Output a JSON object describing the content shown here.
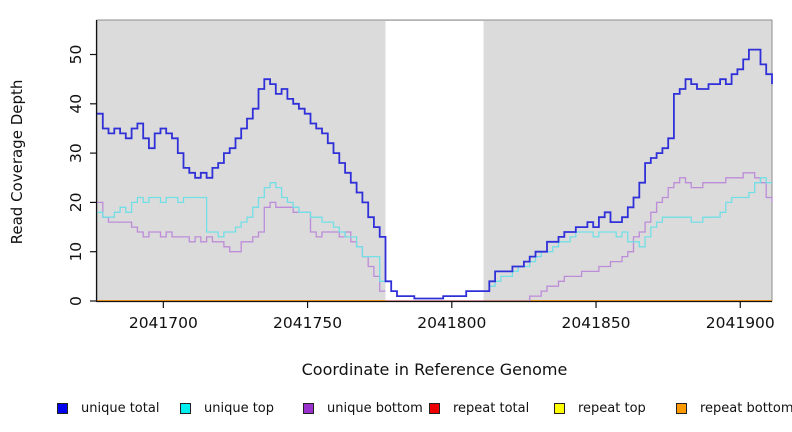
{
  "figure": {
    "x_axis_title": "Coordinate in Reference Genome",
    "y_axis_title": "Read Coverage Depth"
  },
  "chart_data": {
    "type": "line",
    "step_shape": "step-after",
    "title": "",
    "xlabel": "Coordinate in Reference Genome",
    "ylabel": "Read Coverage Depth",
    "xlim": [
      2041677,
      2041911
    ],
    "ylim": [
      0,
      57
    ],
    "x_ticks": [
      2041700,
      2041750,
      2041800,
      2041850,
      2041900
    ],
    "y_ticks": [
      0,
      10,
      20,
      30,
      40,
      50
    ],
    "grid": false,
    "panel_background": "#DBDBDB",
    "panel_border_color": "#8E8E8E",
    "axis_color": "#111111",
    "highlight_region": {
      "x0": 2041777,
      "x1": 2041811,
      "color": "#FFFFFF"
    },
    "x_start": 2041677,
    "x_step": 2,
    "legend_position": "bottom",
    "series": [
      {
        "id": "unique-total",
        "label": "unique total",
        "swatch_color": "#0000EE",
        "line_color": "#3030D9",
        "line_width": 1.8,
        "z": 6,
        "values": [
          38,
          35,
          34,
          35,
          34,
          33,
          35,
          36,
          33,
          31,
          34,
          35,
          34,
          33,
          30,
          27,
          26,
          25,
          26,
          25,
          27,
          28,
          30,
          31,
          33,
          35,
          37,
          39,
          43,
          45,
          44,
          42,
          43,
          41,
          40,
          39,
          38,
          36,
          35,
          34,
          32,
          30,
          28,
          26,
          24,
          22,
          20,
          17,
          15,
          13,
          4,
          2,
          1,
          1,
          1,
          0.5,
          0.5,
          0.5,
          0.5,
          0.5,
          1,
          1,
          1,
          1,
          2,
          2,
          2,
          2,
          4,
          6,
          6,
          6,
          7,
          7,
          8,
          9,
          10,
          10,
          12,
          12,
          13,
          14,
          14,
          15,
          15,
          16,
          15,
          17,
          18,
          16,
          16,
          17,
          19,
          21,
          24,
          28,
          29,
          30,
          31,
          33,
          42,
          43,
          45,
          44,
          43,
          43,
          44,
          44,
          45,
          44,
          46,
          47,
          49,
          51,
          51,
          48,
          46,
          44
        ]
      },
      {
        "id": "unique-top",
        "label": "unique top",
        "swatch_color": "#00EEEE",
        "line_color": "#72DFE6",
        "line_width": 1.3,
        "z": 5,
        "values": [
          18,
          17,
          17,
          18,
          19,
          18,
          20,
          21,
          20,
          21,
          21,
          20,
          21,
          21,
          20,
          21,
          21,
          21,
          21,
          14,
          14,
          13,
          14,
          14,
          15,
          16,
          17,
          19,
          21,
          23,
          24,
          23,
          21,
          20,
          19,
          18,
          18,
          17,
          17,
          16,
          16,
          15,
          14,
          13,
          13,
          11,
          9,
          9,
          9,
          4,
          null,
          null,
          null,
          null,
          null,
          null,
          null,
          null,
          null,
          null,
          null,
          null,
          null,
          null,
          null,
          null,
          null,
          2,
          3,
          4,
          5,
          5,
          6,
          7,
          7,
          8,
          9,
          10,
          10,
          11,
          12,
          12,
          13,
          14,
          14,
          14,
          13,
          14,
          14,
          14,
          13,
          14,
          12,
          12,
          11,
          13,
          15,
          16,
          17,
          17,
          17,
          17,
          17,
          16,
          16,
          17,
          17,
          17,
          18,
          20,
          21,
          21,
          21,
          22,
          24,
          25,
          24,
          24
        ]
      },
      {
        "id": "unique-bottom",
        "label": "unique bottom",
        "swatch_color": "#9932CC",
        "line_color": "#BD8CD9",
        "line_width": 1.3,
        "z": 4,
        "values": [
          20,
          17,
          16,
          16,
          16,
          16,
          15,
          14,
          13,
          14,
          14,
          13,
          14,
          13,
          13,
          13,
          12,
          13,
          12,
          13,
          12,
          12,
          11,
          10,
          10,
          12,
          12,
          13,
          14,
          19,
          20,
          19,
          19,
          19,
          18,
          18,
          18,
          14,
          13,
          14,
          14,
          14,
          13,
          14,
          12,
          11,
          9,
          7,
          5,
          2,
          null,
          null,
          null,
          null,
          null,
          null,
          null,
          null,
          null,
          null,
          null,
          null,
          null,
          null,
          null,
          null,
          null,
          0,
          0,
          0,
          0,
          0,
          0,
          0,
          0,
          1,
          1,
          2,
          3,
          3,
          4,
          5,
          5,
          5,
          6,
          6,
          6,
          7,
          7,
          8,
          8,
          9,
          10,
          13,
          14,
          16,
          18,
          20,
          21,
          23,
          24,
          25,
          24,
          23,
          23,
          24,
          24,
          24,
          24,
          25,
          25,
          25,
          26,
          26,
          25,
          24,
          21,
          20
        ]
      },
      {
        "id": "repeat-total",
        "label": "repeat total",
        "swatch_color": "#EE0000",
        "line_color": "#D14E62",
        "line_width": 1.2,
        "z": 1,
        "values": [
          0,
          0,
          0,
          0,
          0,
          0,
          0,
          0,
          0,
          0,
          0,
          0,
          0,
          0,
          0,
          0,
          0,
          0,
          0,
          0,
          0,
          0,
          0,
          0,
          0,
          0,
          0,
          0,
          0,
          0,
          0,
          0,
          0,
          0,
          0,
          0,
          0,
          0,
          0,
          0,
          0,
          0,
          0,
          0,
          0,
          0,
          0,
          0,
          0,
          0,
          0,
          0,
          0,
          0,
          0,
          0,
          0,
          0,
          0,
          0,
          0,
          0,
          0,
          0,
          0,
          0,
          0,
          0,
          0,
          0,
          0,
          0,
          0,
          0,
          0,
          0,
          0,
          0,
          0,
          0,
          0,
          0,
          0,
          0,
          0,
          0,
          0,
          0,
          0,
          0,
          0,
          0,
          0,
          0,
          0,
          0,
          0,
          0,
          0,
          0,
          0,
          0,
          0,
          0,
          0,
          0,
          0,
          0,
          0,
          0,
          0,
          0,
          0,
          0,
          0,
          0,
          0,
          0
        ]
      },
      {
        "id": "repeat-top",
        "label": "repeat top",
        "swatch_color": "#FFFF00",
        "line_color": "#EEDD00",
        "line_width": 1.2,
        "z": 2,
        "values": [
          0,
          0,
          0,
          0,
          0,
          0,
          0,
          0,
          0,
          0,
          0,
          0,
          0,
          0,
          0,
          0,
          0,
          0,
          0,
          0,
          0,
          0,
          0,
          0,
          0,
          0,
          0,
          0,
          0,
          0,
          0,
          0,
          0,
          0,
          0,
          0,
          0,
          0,
          0,
          0,
          0,
          0,
          0,
          0,
          0,
          0,
          0,
          0,
          0,
          0,
          null,
          null,
          null,
          null,
          null,
          null,
          null,
          null,
          null,
          null,
          null,
          null,
          null,
          null,
          null,
          null,
          null,
          0,
          0,
          0,
          0,
          0,
          0,
          0,
          0,
          0,
          0,
          0,
          0,
          0,
          0,
          0,
          0,
          0,
          0,
          0,
          0,
          0,
          0,
          0,
          0,
          0,
          0,
          0,
          0,
          0,
          0,
          0,
          0,
          0,
          0,
          0,
          0,
          0,
          0,
          0,
          0,
          0,
          0,
          0,
          0,
          0,
          0,
          0,
          0,
          0,
          0,
          0
        ]
      },
      {
        "id": "repeat-bottom",
        "label": "repeat bottom",
        "swatch_color": "#FF9900",
        "line_color": "#FF9E1F",
        "line_width": 2,
        "z": 3,
        "values": [
          0,
          0,
          0,
          0,
          0,
          0,
          0,
          0,
          0,
          0,
          0,
          0,
          0,
          0,
          0,
          0,
          0,
          0,
          0,
          0,
          0,
          0,
          0,
          0,
          0,
          0,
          0,
          0,
          0,
          0,
          0,
          0,
          0,
          0,
          0,
          0,
          0,
          0,
          0,
          0,
          0,
          0,
          0,
          0,
          0,
          0,
          0,
          0,
          0,
          0,
          null,
          null,
          null,
          null,
          null,
          null,
          null,
          null,
          null,
          null,
          null,
          null,
          null,
          null,
          null,
          null,
          null,
          0,
          0,
          0,
          0,
          0,
          0,
          0,
          0,
          0,
          0,
          0,
          0,
          0,
          0,
          0,
          0,
          0,
          0,
          0,
          0,
          0,
          0,
          0,
          0,
          0,
          0,
          0,
          0,
          0,
          0,
          0,
          0,
          0,
          0,
          0,
          0,
          0,
          0,
          0,
          0,
          0,
          0,
          0,
          0,
          0,
          0,
          0,
          0,
          0,
          0,
          0
        ]
      }
    ]
  },
  "legend": {
    "items": [
      {
        "label": "unique total"
      },
      {
        "label": "unique top"
      },
      {
        "label": "unique bottom"
      },
      {
        "label": "repeat total"
      },
      {
        "label": "repeat top"
      },
      {
        "label": "repeat bottom"
      }
    ]
  }
}
